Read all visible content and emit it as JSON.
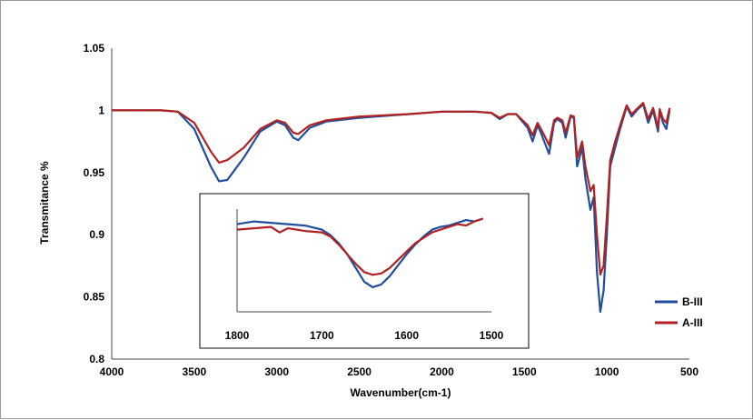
{
  "chart_data": {
    "type": "line",
    "xlabel": "Wavenumber(cm-1)",
    "ylabel": "Transmitance %",
    "xlim": [
      4000,
      500
    ],
    "ylim": [
      0.8,
      1.05
    ],
    "x_ticks": [
      "4000",
      "3500",
      "3000",
      "2500",
      "2000",
      "1500",
      "1000",
      "500"
    ],
    "y_ticks": [
      "0.8",
      "0.85",
      "0.9",
      "0.95",
      "1",
      "1.05"
    ],
    "legend_position": "bottom-right",
    "series": [
      {
        "name": "B-III",
        "color": "#1f4e9c",
        "points": [
          [
            4000,
            1.0
          ],
          [
            3700,
            1.0
          ],
          [
            3600,
            0.999
          ],
          [
            3500,
            0.985
          ],
          [
            3400,
            0.955
          ],
          [
            3350,
            0.943
          ],
          [
            3300,
            0.944
          ],
          [
            3200,
            0.962
          ],
          [
            3100,
            0.983
          ],
          [
            3000,
            0.991
          ],
          [
            2950,
            0.988
          ],
          [
            2900,
            0.978
          ],
          [
            2870,
            0.976
          ],
          [
            2800,
            0.986
          ],
          [
            2700,
            0.991
          ],
          [
            2500,
            0.994
          ],
          [
            2200,
            0.997
          ],
          [
            2000,
            0.999
          ],
          [
            1800,
            0.999
          ],
          [
            1700,
            0.998
          ],
          [
            1650,
            0.993
          ],
          [
            1600,
            0.997
          ],
          [
            1550,
            0.997
          ],
          [
            1480,
            0.986
          ],
          [
            1450,
            0.975
          ],
          [
            1420,
            0.988
          ],
          [
            1400,
            0.982
          ],
          [
            1380,
            0.975
          ],
          [
            1350,
            0.965
          ],
          [
            1320,
            0.99
          ],
          [
            1300,
            0.993
          ],
          [
            1270,
            0.99
          ],
          [
            1250,
            0.978
          ],
          [
            1220,
            0.995
          ],
          [
            1200,
            0.994
          ],
          [
            1180,
            0.955
          ],
          [
            1150,
            0.97
          ],
          [
            1130,
            0.945
          ],
          [
            1100,
            0.92
          ],
          [
            1080,
            0.93
          ],
          [
            1060,
            0.87
          ],
          [
            1040,
            0.838
          ],
          [
            1020,
            0.855
          ],
          [
            1000,
            0.9
          ],
          [
            980,
            0.955
          ],
          [
            950,
            0.97
          ],
          [
            920,
            0.985
          ],
          [
            880,
            1.003
          ],
          [
            850,
            0.995
          ],
          [
            820,
            1.0
          ],
          [
            780,
            1.005
          ],
          [
            750,
            0.99
          ],
          [
            720,
            1.0
          ],
          [
            690,
            0.983
          ],
          [
            680,
            1.0
          ],
          [
            660,
            0.99
          ],
          [
            640,
            0.985
          ],
          [
            620,
            1.0
          ]
        ]
      },
      {
        "name": "A-III",
        "color": "#b22222",
        "points": [
          [
            4000,
            1.0
          ],
          [
            3700,
            1.0
          ],
          [
            3600,
            0.999
          ],
          [
            3500,
            0.99
          ],
          [
            3400,
            0.967
          ],
          [
            3350,
            0.958
          ],
          [
            3300,
            0.96
          ],
          [
            3200,
            0.97
          ],
          [
            3100,
            0.985
          ],
          [
            3000,
            0.992
          ],
          [
            2950,
            0.99
          ],
          [
            2900,
            0.982
          ],
          [
            2870,
            0.981
          ],
          [
            2800,
            0.988
          ],
          [
            2700,
            0.992
          ],
          [
            2500,
            0.995
          ],
          [
            2200,
            0.997
          ],
          [
            2000,
            0.999
          ],
          [
            1800,
            0.999
          ],
          [
            1700,
            0.998
          ],
          [
            1650,
            0.994
          ],
          [
            1600,
            0.997
          ],
          [
            1550,
            0.997
          ],
          [
            1480,
            0.988
          ],
          [
            1450,
            0.98
          ],
          [
            1420,
            0.99
          ],
          [
            1400,
            0.985
          ],
          [
            1380,
            0.98
          ],
          [
            1350,
            0.972
          ],
          [
            1320,
            0.992
          ],
          [
            1300,
            0.994
          ],
          [
            1270,
            0.992
          ],
          [
            1250,
            0.982
          ],
          [
            1220,
            0.996
          ],
          [
            1200,
            0.995
          ],
          [
            1180,
            0.962
          ],
          [
            1150,
            0.975
          ],
          [
            1130,
            0.955
          ],
          [
            1100,
            0.935
          ],
          [
            1080,
            0.94
          ],
          [
            1060,
            0.9
          ],
          [
            1040,
            0.868
          ],
          [
            1020,
            0.875
          ],
          [
            1000,
            0.915
          ],
          [
            980,
            0.96
          ],
          [
            950,
            0.975
          ],
          [
            920,
            0.988
          ],
          [
            880,
            1.004
          ],
          [
            850,
            0.997
          ],
          [
            820,
            1.001
          ],
          [
            780,
            1.006
          ],
          [
            750,
            0.993
          ],
          [
            720,
            1.002
          ],
          [
            690,
            0.986
          ],
          [
            680,
            1.001
          ],
          [
            660,
            0.993
          ],
          [
            640,
            0.99
          ],
          [
            620,
            1.002
          ]
        ]
      }
    ],
    "inset": {
      "xlim": [
        1800,
        1500
      ],
      "ylim": [
        0.84,
        0.915
      ],
      "x_ticks": [
        "1800",
        "1700",
        "1600",
        "1500"
      ],
      "series": [
        {
          "name": "B-III",
          "color": "#1f4e9c",
          "points": [
            [
              1800,
              0.904
            ],
            [
              1780,
              0.906
            ],
            [
              1760,
              0.905
            ],
            [
              1740,
              0.904
            ],
            [
              1720,
              0.903
            ],
            [
              1700,
              0.9
            ],
            [
              1690,
              0.896
            ],
            [
              1680,
              0.89
            ],
            [
              1670,
              0.882
            ],
            [
              1660,
              0.872
            ],
            [
              1650,
              0.862
            ],
            [
              1640,
              0.858
            ],
            [
              1630,
              0.86
            ],
            [
              1620,
              0.866
            ],
            [
              1610,
              0.874
            ],
            [
              1600,
              0.882
            ],
            [
              1590,
              0.889
            ],
            [
              1580,
              0.895
            ],
            [
              1570,
              0.9
            ],
            [
              1560,
              0.902
            ],
            [
              1550,
              0.903
            ],
            [
              1540,
              0.905
            ],
            [
              1530,
              0.907
            ],
            [
              1520,
              0.906
            ],
            [
              1510,
              0.908
            ]
          ]
        },
        {
          "name": "A-III",
          "color": "#b22222",
          "points": [
            [
              1800,
              0.9
            ],
            [
              1780,
              0.901
            ],
            [
              1760,
              0.902
            ],
            [
              1750,
              0.898
            ],
            [
              1740,
              0.901
            ],
            [
              1720,
              0.899
            ],
            [
              1700,
              0.898
            ],
            [
              1690,
              0.895
            ],
            [
              1680,
              0.889
            ],
            [
              1670,
              0.882
            ],
            [
              1660,
              0.875
            ],
            [
              1650,
              0.869
            ],
            [
              1640,
              0.867
            ],
            [
              1630,
              0.868
            ],
            [
              1620,
              0.872
            ],
            [
              1610,
              0.878
            ],
            [
              1600,
              0.884
            ],
            [
              1590,
              0.89
            ],
            [
              1580,
              0.894
            ],
            [
              1570,
              0.898
            ],
            [
              1560,
              0.9
            ],
            [
              1550,
              0.902
            ],
            [
              1540,
              0.904
            ],
            [
              1530,
              0.903
            ],
            [
              1520,
              0.906
            ],
            [
              1510,
              0.908
            ]
          ]
        }
      ]
    }
  }
}
